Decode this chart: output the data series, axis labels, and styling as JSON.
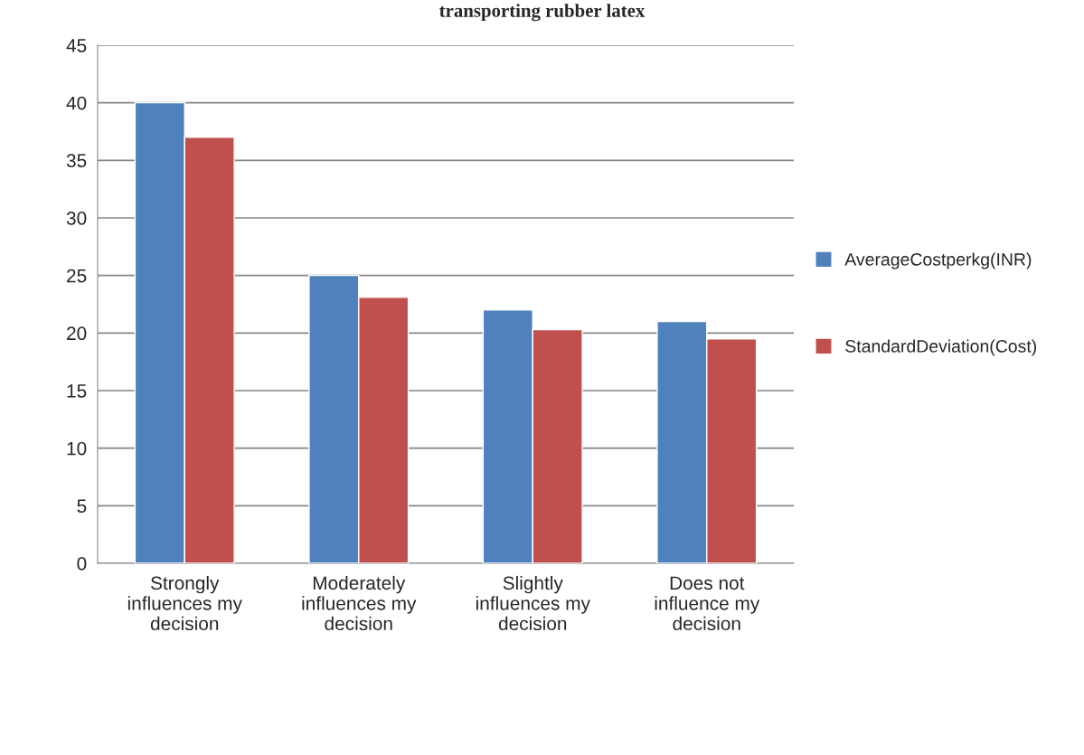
{
  "chart_data": {
    "type": "bar",
    "title": "transporting rubber latex",
    "categories": [
      "Strongly\ninfluences my\ndecision",
      "Moderately\ninfluences my\ndecision",
      "Slightly\ninfluences my\ndecision",
      "Does not\ninfluence my\ndecision"
    ],
    "series": [
      {
        "name": "AverageCostperkg(INR)",
        "color": "#4f81bd",
        "values": [
          40,
          25,
          22,
          21
        ]
      },
      {
        "name": "StandardDeviation(Cost)",
        "color": "#c0504d",
        "values": [
          37,
          23.1,
          20.3,
          19.5
        ]
      }
    ],
    "ylim": [
      0,
      45
    ],
    "yticks": [
      0,
      5,
      10,
      15,
      20,
      25,
      30,
      35,
      40,
      45
    ],
    "grid": "y",
    "legend": "right"
  }
}
